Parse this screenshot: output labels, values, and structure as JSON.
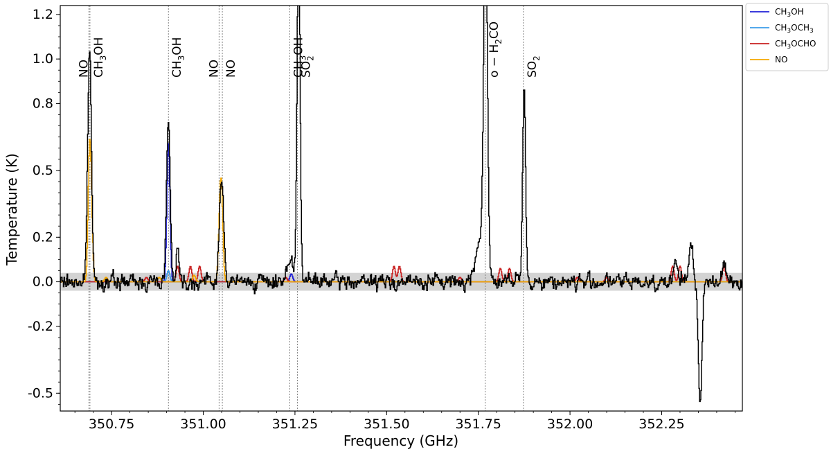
{
  "chart_data": {
    "type": "line",
    "xlabel": "Frequency (GHz)",
    "ylabel": "Temperature (K)",
    "xlim": [
      350.61,
      352.47
    ],
    "ylim": [
      -0.58,
      1.24
    ],
    "x_ticks": [
      {
        "value": 350.75,
        "label": "350.75"
      },
      {
        "value": 351.0,
        "label": "351.00"
      },
      {
        "value": 351.25,
        "label": "351.25"
      },
      {
        "value": 351.5,
        "label": "351.50"
      },
      {
        "value": 351.75,
        "label": "351.75"
      },
      {
        "value": 352.0,
        "label": "352.00"
      },
      {
        "value": 352.25,
        "label": "352.25"
      }
    ],
    "y_ticks": [
      {
        "value": -0.5,
        "label": "-0.5"
      },
      {
        "value": -0.2,
        "label": "-0.2"
      },
      {
        "value": 0.0,
        "label": "0.0"
      },
      {
        "value": 0.2,
        "label": "0.2"
      },
      {
        "value": 0.5,
        "label": "0.5"
      },
      {
        "value": 0.8,
        "label": "0.8"
      },
      {
        "value": 1.0,
        "label": "1.0"
      },
      {
        "value": 1.2,
        "label": "1.2"
      }
    ],
    "noise_band": [
      -0.04,
      0.04
    ],
    "grid": false,
    "legend_position": "outside-top-right",
    "observed": {
      "color": "#000000",
      "peaks": [
        {
          "x": 350.69,
          "height": 1.05,
          "width": 0.005
        },
        {
          "x": 350.905,
          "height": 0.72,
          "width": 0.005
        },
        {
          "x": 350.93,
          "height": 0.16,
          "width": 0.004
        },
        {
          "x": 351.05,
          "height": 0.44,
          "width": 0.006
        },
        {
          "x": 351.24,
          "height": 0.1,
          "width": 0.012
        },
        {
          "x": 351.26,
          "height": 1.6,
          "width": 0.004
        },
        {
          "x": 351.77,
          "height": 1.6,
          "width": 0.005
        },
        {
          "x": 351.755,
          "height": 0.2,
          "width": 0.012
        },
        {
          "x": 351.875,
          "height": 0.87,
          "width": 0.004
        },
        {
          "x": 352.33,
          "height": 0.17,
          "width": 0.006
        },
        {
          "x": 352.355,
          "height": -0.55,
          "width": 0.005
        },
        {
          "x": 352.29,
          "height": 0.07,
          "width": 0.006
        },
        {
          "x": 352.42,
          "height": 0.09,
          "width": 0.006
        }
      ],
      "noise_rms": 0.035,
      "seed": 7
    },
    "series": [
      {
        "name": "CH3OH",
        "color": "#1f1fd6",
        "peaks": [
          {
            "x": 350.905,
            "height": 0.62,
            "width": 0.004
          },
          {
            "x": 351.24,
            "height": 0.035,
            "width": 0.004
          }
        ]
      },
      {
        "name": "CH3OCH3",
        "color": "#3a9be8",
        "peaks": [
          {
            "x": 350.905,
            "height": 0.05,
            "width": 0.004
          }
        ]
      },
      {
        "name": "CH3OCHO",
        "color": "#c82020",
        "peaks": [
          {
            "x": 350.845,
            "height": 0.02,
            "width": 0.004
          },
          {
            "x": 350.93,
            "height": 0.07,
            "width": 0.004
          },
          {
            "x": 350.965,
            "height": 0.07,
            "width": 0.004
          },
          {
            "x": 350.99,
            "height": 0.07,
            "width": 0.004
          },
          {
            "x": 351.225,
            "height": 0.02,
            "width": 0.004
          },
          {
            "x": 351.52,
            "height": 0.07,
            "width": 0.004
          },
          {
            "x": 351.535,
            "height": 0.07,
            "width": 0.004
          },
          {
            "x": 351.7,
            "height": 0.02,
            "width": 0.004
          },
          {
            "x": 351.81,
            "height": 0.06,
            "width": 0.004
          },
          {
            "x": 351.835,
            "height": 0.06,
            "width": 0.004
          },
          {
            "x": 352.02,
            "height": 0.02,
            "width": 0.004
          },
          {
            "x": 352.1,
            "height": 0.02,
            "width": 0.004
          },
          {
            "x": 352.28,
            "height": 0.07,
            "width": 0.004
          },
          {
            "x": 352.3,
            "height": 0.07,
            "width": 0.004
          },
          {
            "x": 352.42,
            "height": 0.07,
            "width": 0.004
          }
        ]
      },
      {
        "name": "NO",
        "color": "#f5a800",
        "peaks": [
          {
            "x": 350.69,
            "height": 0.54,
            "width": 0.004
          },
          {
            "x": 350.695,
            "height": 0.2,
            "width": 0.004
          },
          {
            "x": 350.735,
            "height": 0.02,
            "width": 0.004
          },
          {
            "x": 350.88,
            "height": 0.02,
            "width": 0.004
          },
          {
            "x": 350.975,
            "height": 0.03,
            "width": 0.004
          },
          {
            "x": 351.045,
            "height": 0.22,
            "width": 0.004
          },
          {
            "x": 351.05,
            "height": 0.34,
            "width": 0.004
          }
        ]
      }
    ],
    "line_markers": [
      {
        "x": 350.688,
        "label": "NO",
        "sub": ""
      },
      {
        "x": 350.691,
        "label": "CH",
        "sub": "3",
        "label_after": "OH"
      },
      {
        "x": 350.905,
        "label": "CH",
        "sub": "3",
        "label_after": "OH"
      },
      {
        "x": 351.043,
        "label": "NO",
        "sub": ""
      },
      {
        "x": 351.052,
        "label": "NO",
        "sub": ""
      },
      {
        "x": 351.236,
        "label": "CH",
        "sub": "3",
        "label_after": "OH"
      },
      {
        "x": 351.257,
        "label": "SO",
        "sub": "2",
        "label_after": ""
      },
      {
        "x": 351.769,
        "label": "o − H",
        "sub": "2",
        "label_after": "CO"
      },
      {
        "x": 351.873,
        "label": "SO",
        "sub": "2",
        "label_after": ""
      }
    ],
    "legend": [
      {
        "label": "CH",
        "sub": "3",
        "after": "OH",
        "color": "#1f1fd6"
      },
      {
        "label": "CH",
        "sub": "3",
        "after": "OCH",
        "sub2": "3",
        "color": "#3a9be8"
      },
      {
        "label": "CH",
        "sub": "3",
        "after": "OCHO",
        "color": "#c82020"
      },
      {
        "label": "NO",
        "sub": "",
        "after": "",
        "color": "#f5a800"
      }
    ]
  }
}
